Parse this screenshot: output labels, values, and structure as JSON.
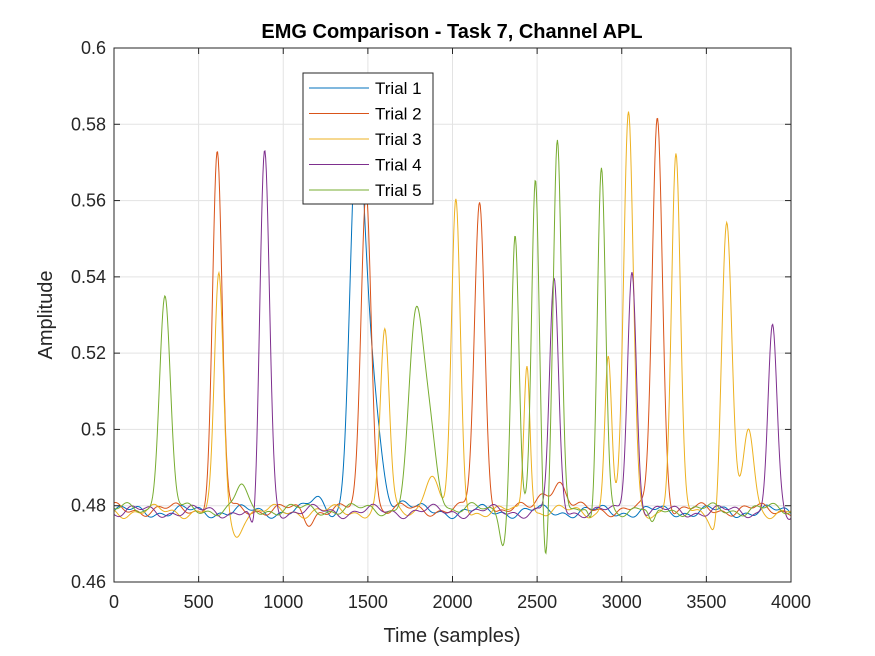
{
  "chart_data": {
    "type": "line",
    "title": "EMG Comparison - Task 7, Channel APL",
    "xlabel": "Time (samples)",
    "ylabel": "Amplitude",
    "xlim": [
      0,
      4000
    ],
    "ylim": [
      0.46,
      0.6
    ],
    "xticks": [
      0,
      500,
      1000,
      1500,
      2000,
      2500,
      3000,
      3500,
      4000
    ],
    "yticks": [
      0.46,
      0.48,
      0.5,
      0.52,
      0.54,
      0.56,
      0.58,
      0.6
    ],
    "xtick_labels": [
      "0",
      "500",
      "1000",
      "1500",
      "2000",
      "2500",
      "3000",
      "3500",
      "4000"
    ],
    "ytick_labels": [
      "0.46",
      "0.48",
      "0.5",
      "0.52",
      "0.54",
      "0.56",
      "0.58",
      "0.6"
    ],
    "grid": true,
    "legend_position": "top-left-center",
    "series": [
      {
        "name": "Trial 1",
        "color": "#0072BD",
        "baseline": 0.4785,
        "peaks": [
          {
            "x": 1430,
            "y": 0.554,
            "w": 40
          },
          {
            "x": 1495,
            "y": 0.522,
            "w": 60
          },
          {
            "x": 1360,
            "y": 0.474,
            "w": 25
          },
          {
            "x": 1200,
            "y": 0.482,
            "w": 40
          },
          {
            "x": 1700,
            "y": 0.481,
            "w": 50
          }
        ]
      },
      {
        "name": "Trial 2",
        "color": "#D95319",
        "baseline": 0.479,
        "peaks": [
          {
            "x": 610,
            "y": 0.572,
            "w": 28
          },
          {
            "x": 1490,
            "y": 0.563,
            "w": 30
          },
          {
            "x": 2160,
            "y": 0.559,
            "w": 30
          },
          {
            "x": 3210,
            "y": 0.582,
            "w": 30
          },
          {
            "x": 2540,
            "y": 0.483,
            "w": 40
          },
          {
            "x": 2630,
            "y": 0.486,
            "w": 40
          },
          {
            "x": 1150,
            "y": 0.476,
            "w": 30
          }
        ]
      },
      {
        "name": "Trial 3",
        "color": "#EDB120",
        "baseline": 0.4785,
        "peaks": [
          {
            "x": 620,
            "y": 0.54,
            "w": 26
          },
          {
            "x": 1600,
            "y": 0.526,
            "w": 26
          },
          {
            "x": 2020,
            "y": 0.559,
            "w": 26
          },
          {
            "x": 2440,
            "y": 0.518,
            "w": 18
          },
          {
            "x": 2920,
            "y": 0.52,
            "w": 20
          },
          {
            "x": 3040,
            "y": 0.583,
            "w": 28
          },
          {
            "x": 3320,
            "y": 0.571,
            "w": 26
          },
          {
            "x": 3620,
            "y": 0.555,
            "w": 30
          },
          {
            "x": 3750,
            "y": 0.5,
            "w": 30
          },
          {
            "x": 1870,
            "y": 0.488,
            "w": 40
          },
          {
            "x": 720,
            "y": 0.472,
            "w": 30
          },
          {
            "x": 3560,
            "y": 0.471,
            "w": 25
          }
        ]
      },
      {
        "name": "Trial 4",
        "color": "#7E2F8E",
        "baseline": 0.4785,
        "peaks": [
          {
            "x": 890,
            "y": 0.573,
            "w": 28
          },
          {
            "x": 2600,
            "y": 0.538,
            "w": 26
          },
          {
            "x": 3060,
            "y": 0.542,
            "w": 26
          },
          {
            "x": 3890,
            "y": 0.527,
            "w": 26
          },
          {
            "x": 830,
            "y": 0.469,
            "w": 20
          },
          {
            "x": 3990,
            "y": 0.476,
            "w": 25
          }
        ]
      },
      {
        "name": "Trial 5",
        "color": "#77AC30",
        "baseline": 0.479,
        "peaks": [
          {
            "x": 300,
            "y": 0.535,
            "w": 32
          },
          {
            "x": 1780,
            "y": 0.521,
            "w": 40
          },
          {
            "x": 1850,
            "y": 0.503,
            "w": 50
          },
          {
            "x": 2370,
            "y": 0.551,
            "w": 22
          },
          {
            "x": 2490,
            "y": 0.564,
            "w": 22
          },
          {
            "x": 2620,
            "y": 0.577,
            "w": 24
          },
          {
            "x": 2880,
            "y": 0.569,
            "w": 24
          },
          {
            "x": 2550,
            "y": 0.464,
            "w": 14
          },
          {
            "x": 2300,
            "y": 0.471,
            "w": 20
          },
          {
            "x": 2830,
            "y": 0.471,
            "w": 20
          },
          {
            "x": 3180,
            "y": 0.474,
            "w": 20
          },
          {
            "x": 750,
            "y": 0.485,
            "w": 30
          }
        ]
      }
    ]
  }
}
